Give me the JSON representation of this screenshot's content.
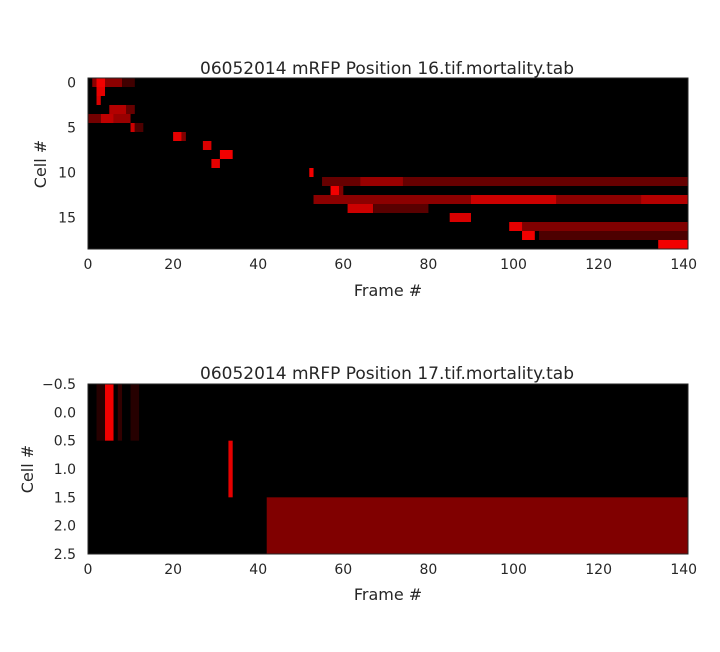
{
  "chart_data": [
    {
      "type": "heatmap",
      "title": "06052014 mRFP Position 16.tif.mortality.tab",
      "xlabel": "Frame #",
      "ylabel": "Cell #",
      "xlim": [
        0,
        141
      ],
      "ylim": [
        18.5,
        -0.5
      ],
      "xticks": [
        "0",
        "20",
        "40",
        "60",
        "80",
        "100",
        "120",
        "140"
      ],
      "xtick_values": [
        0,
        20,
        40,
        60,
        80,
        100,
        120,
        140
      ],
      "yticks": [
        "0",
        "5",
        "10",
        "15"
      ],
      "ytick_values": [
        0,
        5,
        10,
        15
      ],
      "colormap": [
        "#000000",
        "#ff0000"
      ],
      "segments": [
        {
          "row": 0,
          "x0": 1,
          "x1": 8,
          "intensity": 0.55
        },
        {
          "row": 0,
          "x0": 2,
          "x1": 4,
          "intensity": 0.95
        },
        {
          "row": 0,
          "x0": 8,
          "x1": 11,
          "intensity": 0.25
        },
        {
          "row": 1,
          "x0": 2,
          "x1": 4,
          "intensity": 0.9
        },
        {
          "row": 2,
          "x0": 2,
          "x1": 3,
          "intensity": 0.85
        },
        {
          "row": 3,
          "x0": 5,
          "x1": 9,
          "intensity": 0.7
        },
        {
          "row": 3,
          "x0": 9,
          "x1": 11,
          "intensity": 0.4
        },
        {
          "row": 4,
          "x0": 0,
          "x1": 3,
          "intensity": 0.45
        },
        {
          "row": 4,
          "x0": 3,
          "x1": 6,
          "intensity": 0.75
        },
        {
          "row": 4,
          "x0": 6,
          "x1": 10,
          "intensity": 0.6
        },
        {
          "row": 5,
          "x0": 10,
          "x1": 11,
          "intensity": 0.8
        },
        {
          "row": 5,
          "x0": 11,
          "x1": 13,
          "intensity": 0.3
        },
        {
          "row": 6,
          "x0": 20,
          "x1": 22,
          "intensity": 0.9
        },
        {
          "row": 6,
          "x0": 22,
          "x1": 23,
          "intensity": 0.5
        },
        {
          "row": 7,
          "x0": 27,
          "x1": 29,
          "intensity": 0.85
        },
        {
          "row": 8,
          "x0": 31,
          "x1": 34,
          "intensity": 0.95
        },
        {
          "row": 9,
          "x0": 29,
          "x1": 31,
          "intensity": 0.9
        },
        {
          "row": 10,
          "x0": 52,
          "x1": 53,
          "intensity": 0.95
        },
        {
          "row": 11,
          "x0": 55,
          "x1": 141,
          "intensity": 0.4
        },
        {
          "row": 11,
          "x0": 64,
          "x1": 74,
          "intensity": 0.6
        },
        {
          "row": 12,
          "x0": 57,
          "x1": 59,
          "intensity": 0.95
        },
        {
          "row": 12,
          "x0": 59,
          "x1": 60,
          "intensity": 0.5
        },
        {
          "row": 13,
          "x0": 53,
          "x1": 141,
          "intensity": 0.55
        },
        {
          "row": 13,
          "x0": 90,
          "x1": 110,
          "intensity": 0.8
        },
        {
          "row": 13,
          "x0": 130,
          "x1": 141,
          "intensity": 0.7
        },
        {
          "row": 14,
          "x0": 61,
          "x1": 67,
          "intensity": 0.8
        },
        {
          "row": 14,
          "x0": 67,
          "x1": 80,
          "intensity": 0.35
        },
        {
          "row": 15,
          "x0": 85,
          "x1": 90,
          "intensity": 0.85
        },
        {
          "row": 16,
          "x0": 99,
          "x1": 141,
          "intensity": 0.5
        },
        {
          "row": 16,
          "x0": 99,
          "x1": 102,
          "intensity": 0.9
        },
        {
          "row": 17,
          "x0": 102,
          "x1": 105,
          "intensity": 0.95
        },
        {
          "row": 17,
          "x0": 106,
          "x1": 141,
          "intensity": 0.3
        },
        {
          "row": 18,
          "x0": 134,
          "x1": 141,
          "intensity": 0.95
        }
      ]
    },
    {
      "type": "heatmap",
      "title": "06052014 mRFP Position 17.tif.mortality.tab",
      "xlabel": "Frame #",
      "ylabel": "Cell #",
      "xlim": [
        0,
        141
      ],
      "ylim": [
        2.5,
        -0.5
      ],
      "xticks": [
        "0",
        "20",
        "40",
        "60",
        "80",
        "100",
        "120",
        "140"
      ],
      "xtick_values": [
        0,
        20,
        40,
        60,
        80,
        100,
        120,
        140
      ],
      "yticks": [
        "−0.5",
        "0.0",
        "0.5",
        "1.0",
        "1.5",
        "2.0",
        "2.5"
      ],
      "ytick_values": [
        -0.5,
        0.0,
        0.5,
        1.0,
        1.5,
        2.0,
        2.5
      ],
      "colormap": [
        "#000000",
        "#ff0000"
      ],
      "segments": [
        {
          "row": 0,
          "x0": 2,
          "x1": 4,
          "intensity": 0.15
        },
        {
          "row": 0,
          "x0": 4,
          "x1": 6,
          "intensity": 0.95
        },
        {
          "row": 0,
          "x0": 7,
          "x1": 8,
          "intensity": 0.2
        },
        {
          "row": 0,
          "x0": 10,
          "x1": 12,
          "intensity": 0.15
        },
        {
          "row": 1,
          "x0": 33,
          "x1": 34,
          "intensity": 0.9
        },
        {
          "row": 2,
          "x0": 42,
          "x1": 141,
          "intensity": 0.5
        }
      ]
    }
  ]
}
